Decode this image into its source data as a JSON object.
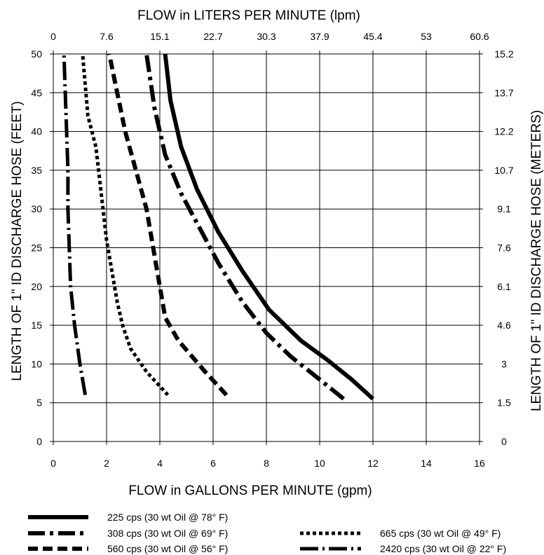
{
  "chart_data": {
    "type": "line",
    "top_axis_title": "FLOW in LITERS PER MINUTE (lpm)",
    "bottom_axis_title": "FLOW in GALLONS PER MINUTE (gpm)",
    "left_axis_title": "LENGTH OF 1\" ID DISCHARGE HOSE (FEET)",
    "right_axis_title": "LENGTH OF 1\" ID DISCHARGE HOSE (METERS)",
    "xlim": [
      0,
      16
    ],
    "ylim": [
      0,
      50
    ],
    "grid": true,
    "x_ticks": [
      "0",
      "2",
      "4",
      "6",
      "8",
      "10",
      "12",
      "14",
      "16"
    ],
    "y_ticks": [
      "0",
      "5",
      "10",
      "15",
      "20",
      "25",
      "30",
      "35",
      "40",
      "45",
      "50"
    ],
    "top_ticks": [
      "0",
      "7.6",
      "15.1",
      "22.7",
      "30.3",
      "37.9",
      "45.4",
      "53",
      "60.6"
    ],
    "right_ticks": [
      "0",
      "1.5",
      "3",
      "4.6",
      "6.1",
      "7.6",
      "9.1",
      "10.7",
      "12.2",
      "13.7",
      "15.2"
    ],
    "series": [
      {
        "name": "225 cps (30 wt Oil @ 78° F)",
        "style": "solid",
        "x": [
          12.0,
          11.2,
          10.3,
          9.3,
          8.1,
          7.1,
          6.2,
          5.4,
          4.8,
          4.4,
          4.2
        ],
        "y": [
          5.5,
          8,
          10.5,
          13,
          17,
          22,
          27,
          32.5,
          38,
          44,
          50
        ]
      },
      {
        "name": "308 cps (30 wt Oil @ 69° F)",
        "style": "dash-dot",
        "x": [
          10.9,
          10.0,
          8.9,
          8.0,
          7.1,
          6.2,
          5.5,
          4.8,
          4.2,
          3.8,
          3.5
        ],
        "y": [
          5.5,
          8,
          11,
          14,
          18,
          23,
          27.5,
          32,
          37,
          43,
          50
        ]
      },
      {
        "name": "560 cps (30 wt Oil @ 56° F)",
        "style": "dashed",
        "x": [
          6.5,
          5.7,
          4.7,
          4.2,
          4.0,
          3.8,
          3.5,
          3.1,
          2.7,
          2.4,
          2.1
        ],
        "y": [
          6,
          9,
          13,
          16,
          20,
          24,
          30,
          35,
          40,
          45,
          50
        ]
      },
      {
        "name": "665 cps (30 wt Oil @ 49° F)",
        "style": "dotted",
        "x": [
          4.3,
          3.5,
          2.9,
          2.6,
          2.4,
          2.2,
          2.0,
          1.8,
          1.6,
          1.3,
          1.2,
          1.1
        ],
        "y": [
          6,
          9,
          12,
          15,
          18,
          22,
          26,
          32,
          38,
          42,
          46,
          50
        ]
      },
      {
        "name": "2420 cps (30 wt Oil @ 22° F)",
        "style": "long-dash-dot",
        "x": [
          1.2,
          1.0,
          0.8,
          0.65,
          0.6,
          0.55,
          0.55,
          0.5,
          0.45,
          0.4
        ],
        "y": [
          6,
          10,
          15,
          20,
          25,
          30,
          35,
          40,
          45,
          50
        ]
      }
    ]
  }
}
